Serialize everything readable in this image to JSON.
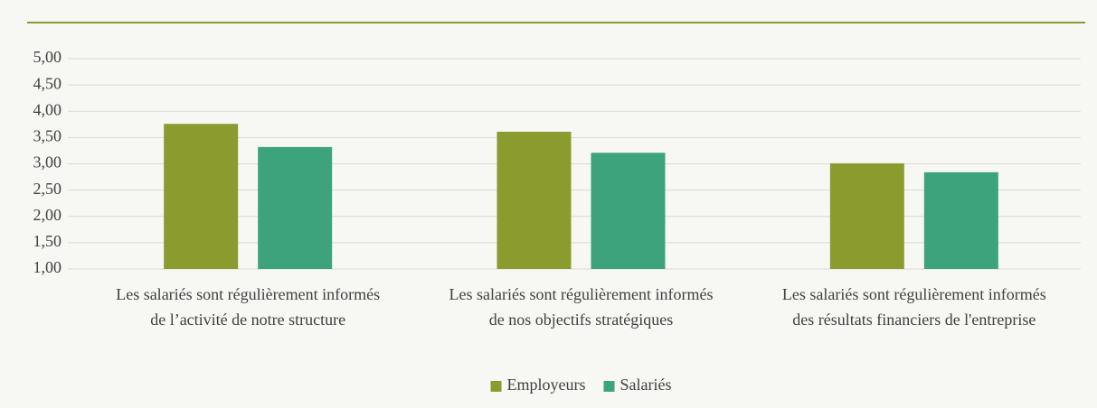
{
  "chart_data": {
    "type": "bar",
    "categories": [
      "Les salariés sont régulièrement informés de l’activité de notre structure",
      "Les salariés sont régulièrement informés de nos objectifs stratégiques",
      "Les salariés sont régulièrement informés des résultats financiers de l'entreprise"
    ],
    "series": [
      {
        "name": "Employeurs",
        "color": "#8c9b2e",
        "values": [
          3.76,
          3.61,
          3.01
        ]
      },
      {
        "name": "Salariés",
        "color": "#3da37c",
        "values": [
          3.32,
          3.21,
          2.84
        ]
      }
    ],
    "ylim": [
      1,
      5
    ],
    "yticks": [
      {
        "value": 1,
        "label": "1,00"
      },
      {
        "value": 1.5,
        "label": "1,50"
      },
      {
        "value": 2,
        "label": "2,00"
      },
      {
        "value": 2.5,
        "label": "2,50"
      },
      {
        "value": 3,
        "label": "3,00"
      },
      {
        "value": 3.5,
        "label": "3,50"
      },
      {
        "value": 4,
        "label": "4,00"
      },
      {
        "value": 4.5,
        "label": "4,50"
      },
      {
        "value": 5,
        "label": "5,00"
      }
    ],
    "grid": true,
    "legend": "bottom"
  }
}
